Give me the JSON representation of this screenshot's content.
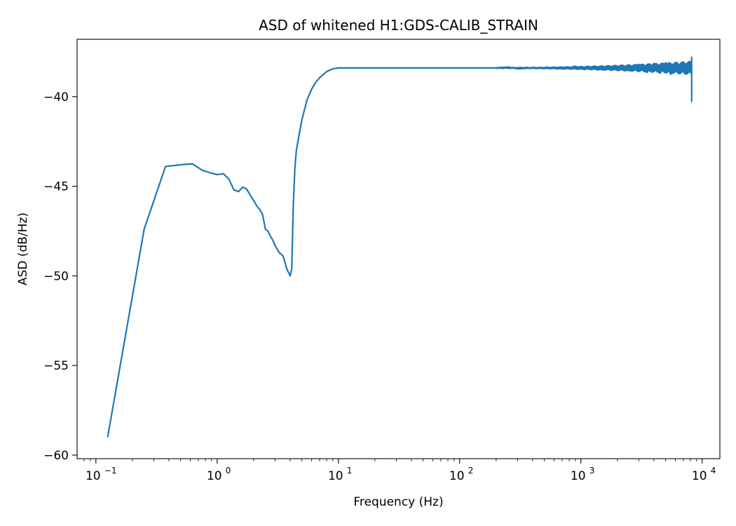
{
  "chart_data": {
    "type": "line",
    "title": "ASD of whitened H1:GDS-CALIB_STRAIN",
    "xlabel": "Frequency (Hz)",
    "ylabel": "ASD (dB/Hz)",
    "xscale": "log",
    "xlim": [
      0.07,
      14000
    ],
    "ylim": [
      -60.2,
      -36.8
    ],
    "xticks": [
      {
        "value": 0.1,
        "base": "10",
        "exp": "−1"
      },
      {
        "value": 1,
        "base": "10",
        "exp": "0"
      },
      {
        "value": 10,
        "base": "10",
        "exp": "1"
      },
      {
        "value": 100,
        "base": "10",
        "exp": "2"
      },
      {
        "value": 1000,
        "base": "10",
        "exp": "3"
      },
      {
        "value": 10000,
        "base": "10",
        "exp": "4"
      }
    ],
    "yticks": [
      {
        "value": -40,
        "label": "−40"
      },
      {
        "value": -45,
        "label": "−45"
      },
      {
        "value": -50,
        "label": "−50"
      },
      {
        "value": -55,
        "label": "−55"
      },
      {
        "value": -60,
        "label": "−60"
      }
    ],
    "grid": false,
    "color": "#1f77b4",
    "series": [
      {
        "x": [
          0.125,
          0.25,
          0.375,
          0.5,
          0.625,
          0.75,
          0.875,
          1.0,
          1.125,
          1.25,
          1.375,
          1.5,
          1.625,
          1.75,
          1.875,
          2.0,
          2.125,
          2.25,
          2.375,
          2.5,
          2.625,
          2.75,
          2.875,
          3.0,
          3.25,
          3.5,
          3.75,
          4.0,
          4.125,
          4.25,
          4.375,
          4.5,
          4.75,
          5.0,
          5.5,
          6.0,
          6.5,
          7.0,
          8.0,
          9.0,
          10,
          20,
          50,
          100,
          150,
          200,
          250,
          300,
          400,
          500,
          600,
          700,
          800,
          900,
          1000,
          1200,
          1500,
          2000,
          2500,
          3000,
          3500,
          4000,
          4500,
          5000,
          5500,
          6000,
          6500,
          7000,
          7500,
          8000,
          8150,
          8192,
          8192
        ],
        "y": [
          -59.0,
          -47.4,
          -43.9,
          -43.8,
          -43.75,
          -44.1,
          -44.25,
          -44.35,
          -44.3,
          -44.6,
          -45.2,
          -45.3,
          -45.05,
          -45.15,
          -45.5,
          -45.8,
          -46.1,
          -46.3,
          -46.6,
          -47.4,
          -47.5,
          -47.8,
          -48.0,
          -48.3,
          -48.7,
          -48.9,
          -49.6,
          -50.0,
          -49.6,
          -46.0,
          -44.0,
          -43.0,
          -42.1,
          -41.3,
          -40.2,
          -39.6,
          -39.2,
          -38.95,
          -38.6,
          -38.45,
          -38.4,
          -38.4,
          -38.4,
          -38.4,
          -38.4,
          -38.4,
          -38.35,
          -38.45,
          -38.4,
          -38.42,
          -38.38,
          -38.45,
          -38.4,
          -38.3,
          -38.45,
          -38.35,
          -38.5,
          -38.3,
          -38.55,
          -38.2,
          -38.65,
          -38.15,
          -38.7,
          -38.1,
          -38.75,
          -38.2,
          -38.6,
          -38.3,
          -38.5,
          -38.4,
          -38.4,
          -37.8,
          -40.3
        ]
      }
    ]
  }
}
